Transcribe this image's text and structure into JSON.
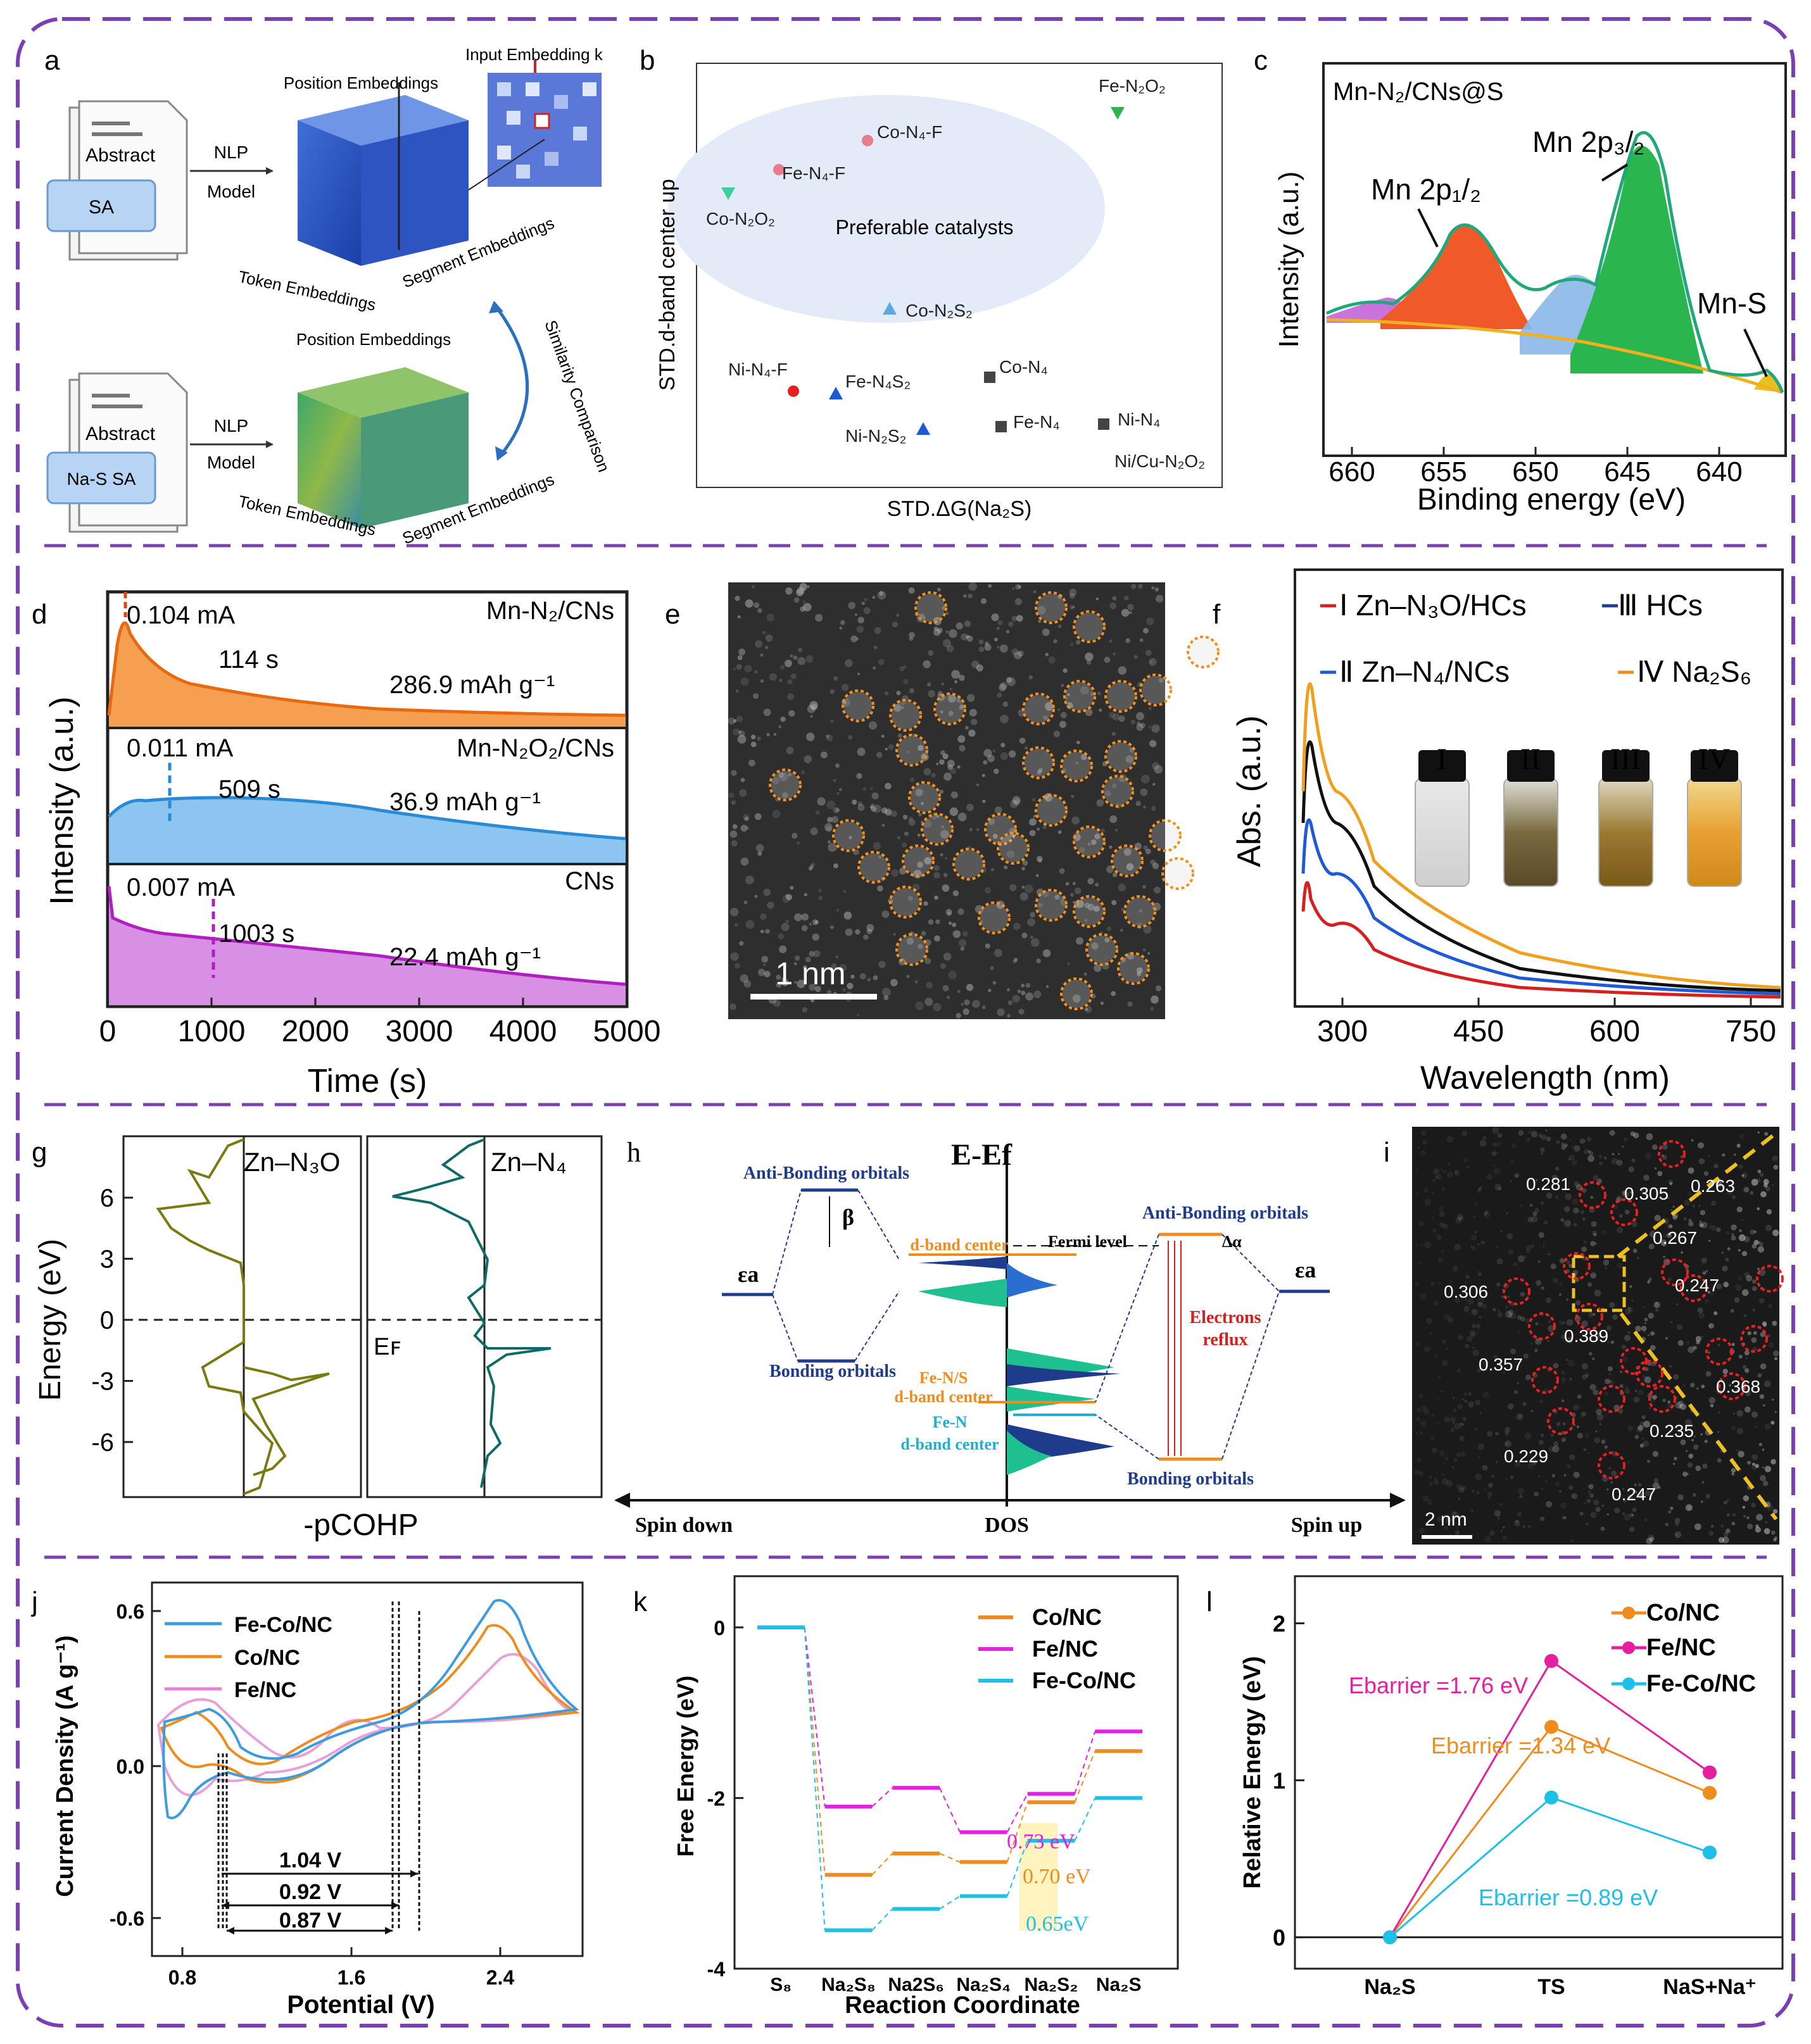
{
  "colors": {
    "frame": "#7b3fb3",
    "orange": "#f08c1e",
    "blue": "#3d9be0",
    "purple": "#c15ad6",
    "magenta": "#e61ee6",
    "cyan": "#1fc0e8",
    "navy": "#1f3b8c",
    "red": "#d62020",
    "green": "#2ab54e"
  },
  "panels": {
    "a": {
      "letter": "a",
      "doc_top": "Abstract",
      "chip_top": "SA",
      "doc_bottom": "Abstract",
      "chip_bottom": "Na-S SA",
      "nlp": "NLP",
      "model": "Model",
      "pos_emb": "Position Embeddings",
      "tok_emb": "Token Embeddings",
      "seg_emb": "Segment Embeddings",
      "input_emb": "Input Embedding k",
      "similarity": "Similarity Comparison"
    },
    "b": {
      "letter": "b",
      "ylabel": "STD.d-band center up",
      "xlabel": "STD.ΔG(Na₂S)",
      "region": "Preferable catalysts",
      "points": [
        {
          "label": "Fe-N₂O₂",
          "sym": "tri-down",
          "color": "#2ab54e"
        },
        {
          "label": "Co-N₄-F",
          "sym": "circle",
          "color": "#e87b8c"
        },
        {
          "label": "Fe-N₄-F",
          "sym": "circle",
          "color": "#e87b8c"
        },
        {
          "label": "Co-N₂O₂",
          "sym": "tri-down",
          "color": "#3fcf9c"
        },
        {
          "label": "Co-N₂S₂",
          "sym": "tri",
          "color": "#5fa8e8"
        },
        {
          "label": "Ni-N₄-F",
          "sym": "circle",
          "color": "#e62020"
        },
        {
          "label": "Fe-N₄S₂",
          "sym": "tri",
          "color": "#1e5ad6"
        },
        {
          "label": "Ni-N₂S₂",
          "sym": "tri",
          "color": "#1e5ad6"
        },
        {
          "label": "Co-N₄",
          "sym": "square",
          "color": "#444444"
        },
        {
          "label": "Fe-N₄",
          "sym": "square",
          "color": "#444444"
        },
        {
          "label": "Ni-N₄",
          "sym": "square",
          "color": "#444444"
        },
        {
          "label": "Ni/Cu-N₂O₂",
          "sym": "none",
          "color": "#444444"
        }
      ]
    },
    "c": {
      "letter": "c",
      "title": "Mn-N₂/CNs@S",
      "ylabel": "Intensity (a.u.)",
      "xlabel": "Binding energy (eV)",
      "xticks": [
        "660",
        "655",
        "650",
        "645",
        "640"
      ],
      "peak1": "Mn 2p₁/₂",
      "peak2": "Mn 2p₃/₂",
      "peak3": "Mn-S"
    },
    "d": {
      "letter": "d",
      "ylabel": "Intensity (a.u.)",
      "xlabel": "Time (s)",
      "xticks": [
        "0",
        "1000",
        "2000",
        "3000",
        "4000",
        "5000"
      ],
      "traces": [
        {
          "name": "Mn-N₂/CNs",
          "current": "0.104 mA",
          "time": "114 s",
          "capacity": "286.9 mAh g⁻¹"
        },
        {
          "name": "Mn-N₂O₂/CNs",
          "current": "0.011 mA",
          "time": "509 s",
          "capacity": "36.9 mAh g⁻¹"
        },
        {
          "name": "CNs",
          "current": "0.007 mA",
          "time": "1003 s",
          "capacity": "22.4 mAh g⁻¹"
        }
      ]
    },
    "e": {
      "letter": "e",
      "scale": "1 nm"
    },
    "f": {
      "letter": "f",
      "ylabel": "Abs. (a.u.)",
      "xlabel": "Wavelength (nm)",
      "xticks": [
        "300",
        "450",
        "600",
        "750"
      ],
      "legend": [
        "Ⅰ Zn–N₃O/HCs",
        "Ⅲ HCs",
        "Ⅱ Zn–N₄/NCs",
        "Ⅳ Na₂S₆"
      ],
      "vials": [
        "I",
        "II",
        "III",
        "IV"
      ]
    },
    "g": {
      "letter": "g",
      "ylabel": "Energy (eV)",
      "xlabel": "-pCOHP",
      "yticks": [
        "6",
        "3",
        "0",
        "-3",
        "-6"
      ],
      "left": "Zn–N₃O",
      "right": "Zn–N₄",
      "ef": "Eꜰ"
    },
    "h": {
      "letter": "h",
      "title": "E-Ef",
      "antibonding_left": "Anti-Bonding orbitals",
      "antibonding_right": "Anti-Bonding orbitals",
      "bonding_left": "Bonding orbitals",
      "bonding_right": "Bonding orbitals",
      "beta": "β",
      "ea": "εa",
      "dband": "d-band center",
      "fermi": "Fermi level",
      "fens": "Fe-N/S",
      "fens2": "d-band center",
      "fen": "Fe-N",
      "fen2": "d-band center",
      "delta": "Δα",
      "reflux1": "Electrons",
      "reflux2": "reflux",
      "spin_down": "Spin down",
      "dos": "DOS",
      "spin_up": "Spin up"
    },
    "i": {
      "letter": "i",
      "scale": "2 nm",
      "labels": [
        "0.263",
        "0.281",
        "0.305",
        "0.267",
        "0.306",
        "0.247",
        "0.389",
        "0.357",
        "0.368",
        "0.235",
        "0.229",
        "0.247"
      ]
    },
    "j": {
      "letter": "j",
      "ylabel": "Current Density (A g⁻¹)",
      "xlabel": "Potential (V)",
      "yticks": [
        "0.6",
        "0.0",
        "-0.6"
      ],
      "xticks": [
        "0.8",
        "1.6",
        "2.4"
      ],
      "legend": [
        "Fe-Co/NC",
        "Co/NC",
        "Fe/NC"
      ],
      "gaps": [
        "1.04 V",
        "0.92 V",
        "0.87 V"
      ]
    },
    "k": {
      "letter": "k",
      "ylabel": "Free Energy (eV)",
      "xlabel": "Reaction Coordinate",
      "yticks": [
        "0",
        "-2",
        "-4"
      ],
      "xticks": [
        "S₈",
        "Na₂S₈",
        "Na2S₆",
        "Na₂S₄",
        "Na₂S₂",
        "Na₂S"
      ],
      "legend": [
        "Co/NC",
        "Fe/NC",
        "Fe-Co/NC"
      ],
      "chart_data": {
        "type": "line",
        "categories": [
          "S8",
          "Na2S8",
          "Na2S6",
          "Na2S4",
          "Na2S2",
          "Na2S"
        ],
        "series": [
          {
            "name": "Co/NC",
            "values": [
              0,
              -2.9,
              -2.65,
              -2.75,
              -2.05,
              -1.45
            ]
          },
          {
            "name": "Fe/NC",
            "values": [
              0,
              -2.1,
              -1.88,
              -2.4,
              -1.95,
              -1.22
            ]
          },
          {
            "name": "Fe-Co/NC",
            "values": [
              0,
              -3.55,
              -3.3,
              -3.15,
              -2.5,
              -2.0
            ]
          }
        ],
        "ylim": [
          -4,
          0.6
        ],
        "annotations": [
          "0.73 eV",
          "0.70 eV",
          "0.65eV"
        ]
      }
    },
    "l": {
      "letter": "l",
      "ylabel": "Relative Energy (eV)",
      "xticks": [
        "Na₂S",
        "TS",
        "NaS+Na⁺"
      ],
      "yticks": [
        "2",
        "1",
        "0"
      ],
      "legend": [
        "Co/NC",
        "Fe/NC",
        "Fe-Co/NC"
      ],
      "chart_data": {
        "type": "line",
        "categories": [
          "Na2S",
          "TS",
          "NaS+Na+"
        ],
        "series": [
          {
            "name": "Co/NC",
            "values": [
              0,
              1.34,
              0.92
            ]
          },
          {
            "name": "Fe/NC",
            "values": [
              0,
              1.76,
              1.05
            ]
          },
          {
            "name": "Fe-Co/NC",
            "values": [
              0,
              0.89,
              0.54
            ]
          }
        ],
        "ylim": [
          -0.2,
          2.3
        ],
        "annotations": [
          "Ebarrier =1.76 eV",
          "Ebarrier =1.34 eV",
          "Ebarrier =0.89 eV"
        ]
      }
    }
  }
}
